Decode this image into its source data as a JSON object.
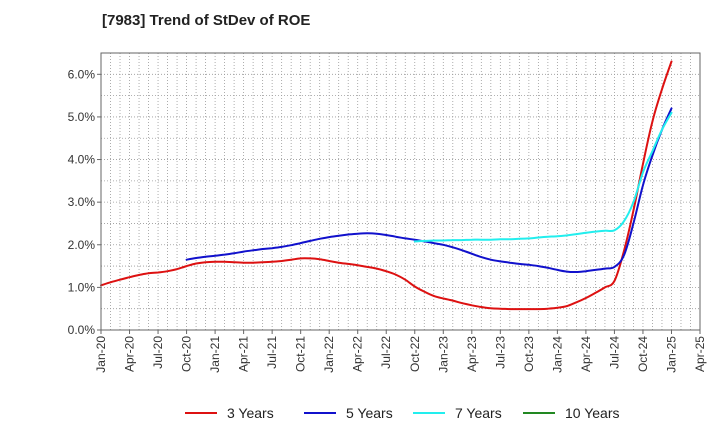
{
  "title": "[7983]  Trend of StDev of ROE",
  "chart_data": {
    "type": "line",
    "title": "[7983]  Trend of StDev of ROE",
    "xlabel": "",
    "ylabel": "",
    "x_ticks": [
      "Jan-20",
      "Apr-20",
      "Jul-20",
      "Oct-20",
      "Jan-21",
      "Apr-21",
      "Jul-21",
      "Oct-21",
      "Jan-22",
      "Apr-22",
      "Jul-22",
      "Oct-22",
      "Jan-23",
      "Apr-23",
      "Jul-23",
      "Oct-23",
      "Jan-24",
      "Apr-24",
      "Jul-24",
      "Oct-24",
      "Jan-25",
      "Apr-25"
    ],
    "y_ticks": [
      "0.0%",
      "1.0%",
      "2.0%",
      "3.0%",
      "4.0%",
      "5.0%",
      "6.0%"
    ],
    "ylim": [
      0,
      6.5
    ],
    "grid": true,
    "legend_position": "bottom",
    "series": [
      {
        "name": "3 Years",
        "color": "#dd1111",
        "x": [
          "Jan-20",
          "Feb-20",
          "Mar-20",
          "Apr-20",
          "May-20",
          "Jun-20",
          "Jul-20",
          "Aug-20",
          "Sep-20",
          "Oct-20",
          "Nov-20",
          "Dec-20",
          "Jan-21",
          "Feb-21",
          "Mar-21",
          "Apr-21",
          "May-21",
          "Jun-21",
          "Jul-21",
          "Aug-21",
          "Sep-21",
          "Oct-21",
          "Nov-21",
          "Dec-21",
          "Jan-22",
          "Feb-22",
          "Mar-22",
          "Apr-22",
          "May-22",
          "Jun-22",
          "Jul-22",
          "Aug-22",
          "Sep-22",
          "Oct-22",
          "Nov-22",
          "Dec-22",
          "Jan-23",
          "Feb-23",
          "Mar-23",
          "Apr-23",
          "May-23",
          "Jun-23",
          "Jul-23",
          "Aug-23",
          "Sep-23",
          "Oct-23",
          "Nov-23",
          "Dec-23",
          "Jan-24",
          "Feb-24",
          "Mar-24",
          "Apr-24",
          "May-24",
          "Jun-24",
          "Jul-24",
          "Aug-24",
          "Sep-24",
          "Oct-24",
          "Nov-24",
          "Dec-24",
          "Jan-25"
        ],
        "values": [
          1.05,
          1.12,
          1.18,
          1.24,
          1.29,
          1.33,
          1.35,
          1.38,
          1.43,
          1.5,
          1.56,
          1.59,
          1.6,
          1.6,
          1.59,
          1.58,
          1.58,
          1.59,
          1.6,
          1.62,
          1.65,
          1.68,
          1.68,
          1.66,
          1.62,
          1.58,
          1.55,
          1.52,
          1.48,
          1.44,
          1.38,
          1.3,
          1.18,
          1.02,
          0.9,
          0.8,
          0.74,
          0.69,
          0.63,
          0.58,
          0.54,
          0.51,
          0.5,
          0.49,
          0.49,
          0.49,
          0.49,
          0.5,
          0.52,
          0.56,
          0.65,
          0.75,
          0.87,
          1.0,
          1.15,
          1.85,
          2.8,
          3.9,
          4.9,
          5.65,
          6.3
        ]
      },
      {
        "name": "5 Years",
        "color": "#1111cc",
        "x": [
          "Jan-20",
          "Feb-20",
          "Mar-20",
          "Apr-20",
          "May-20",
          "Jun-20",
          "Jul-20",
          "Aug-20",
          "Sep-20",
          "Oct-20",
          "Nov-20",
          "Dec-20",
          "Jan-21",
          "Feb-21",
          "Mar-21",
          "Apr-21",
          "May-21",
          "Jun-21",
          "Jul-21",
          "Aug-21",
          "Sep-21",
          "Oct-21",
          "Nov-21",
          "Dec-21",
          "Jan-22",
          "Feb-22",
          "Mar-22",
          "Apr-22",
          "May-22",
          "Jun-22",
          "Jul-22",
          "Aug-22",
          "Sep-22",
          "Oct-22",
          "Nov-22",
          "Dec-22",
          "Jan-23",
          "Feb-23",
          "Mar-23",
          "Apr-23",
          "May-23",
          "Jun-23",
          "Jul-23",
          "Aug-23",
          "Sep-23",
          "Oct-23",
          "Nov-23",
          "Dec-23",
          "Jan-24",
          "Feb-24",
          "Mar-24",
          "Apr-24",
          "May-24",
          "Jun-24",
          "Jul-24",
          "Aug-24",
          "Sep-24",
          "Oct-24",
          "Nov-24",
          "Dec-24",
          "Jan-25"
        ],
        "values": [
          null,
          null,
          null,
          null,
          null,
          null,
          null,
          null,
          null,
          1.65,
          1.69,
          1.72,
          1.74,
          1.77,
          1.8,
          1.84,
          1.87,
          1.9,
          1.92,
          1.95,
          1.99,
          2.04,
          2.09,
          2.14,
          2.18,
          2.21,
          2.24,
          2.26,
          2.27,
          2.26,
          2.23,
          2.19,
          2.15,
          2.12,
          2.08,
          2.04,
          2.0,
          1.94,
          1.87,
          1.79,
          1.71,
          1.65,
          1.61,
          1.58,
          1.55,
          1.53,
          1.5,
          1.46,
          1.41,
          1.37,
          1.36,
          1.38,
          1.41,
          1.44,
          1.48,
          1.75,
          2.5,
          3.4,
          4.1,
          4.7,
          5.2
        ]
      },
      {
        "name": "7 Years",
        "color": "#22eeee",
        "x": [
          "Oct-22",
          "Nov-22",
          "Dec-22",
          "Jan-23",
          "Feb-23",
          "Mar-23",
          "Apr-23",
          "May-23",
          "Jun-23",
          "Jul-23",
          "Aug-23",
          "Sep-23",
          "Oct-23",
          "Nov-23",
          "Dec-23",
          "Jan-24",
          "Feb-24",
          "Mar-24",
          "Apr-24",
          "May-24",
          "Jun-24",
          "Jul-24",
          "Aug-24",
          "Sep-24",
          "Oct-24",
          "Nov-24",
          "Dec-24",
          "Jan-25"
        ],
        "values": [
          2.08,
          2.09,
          2.1,
          2.1,
          2.11,
          2.11,
          2.12,
          2.12,
          2.12,
          2.13,
          2.13,
          2.14,
          2.15,
          2.17,
          2.19,
          2.2,
          2.22,
          2.25,
          2.28,
          2.31,
          2.33,
          2.34,
          2.55,
          3.0,
          3.7,
          4.2,
          4.7,
          5.1
        ]
      },
      {
        "name": "10 Years",
        "color": "#228822",
        "x": [],
        "values": []
      }
    ]
  }
}
